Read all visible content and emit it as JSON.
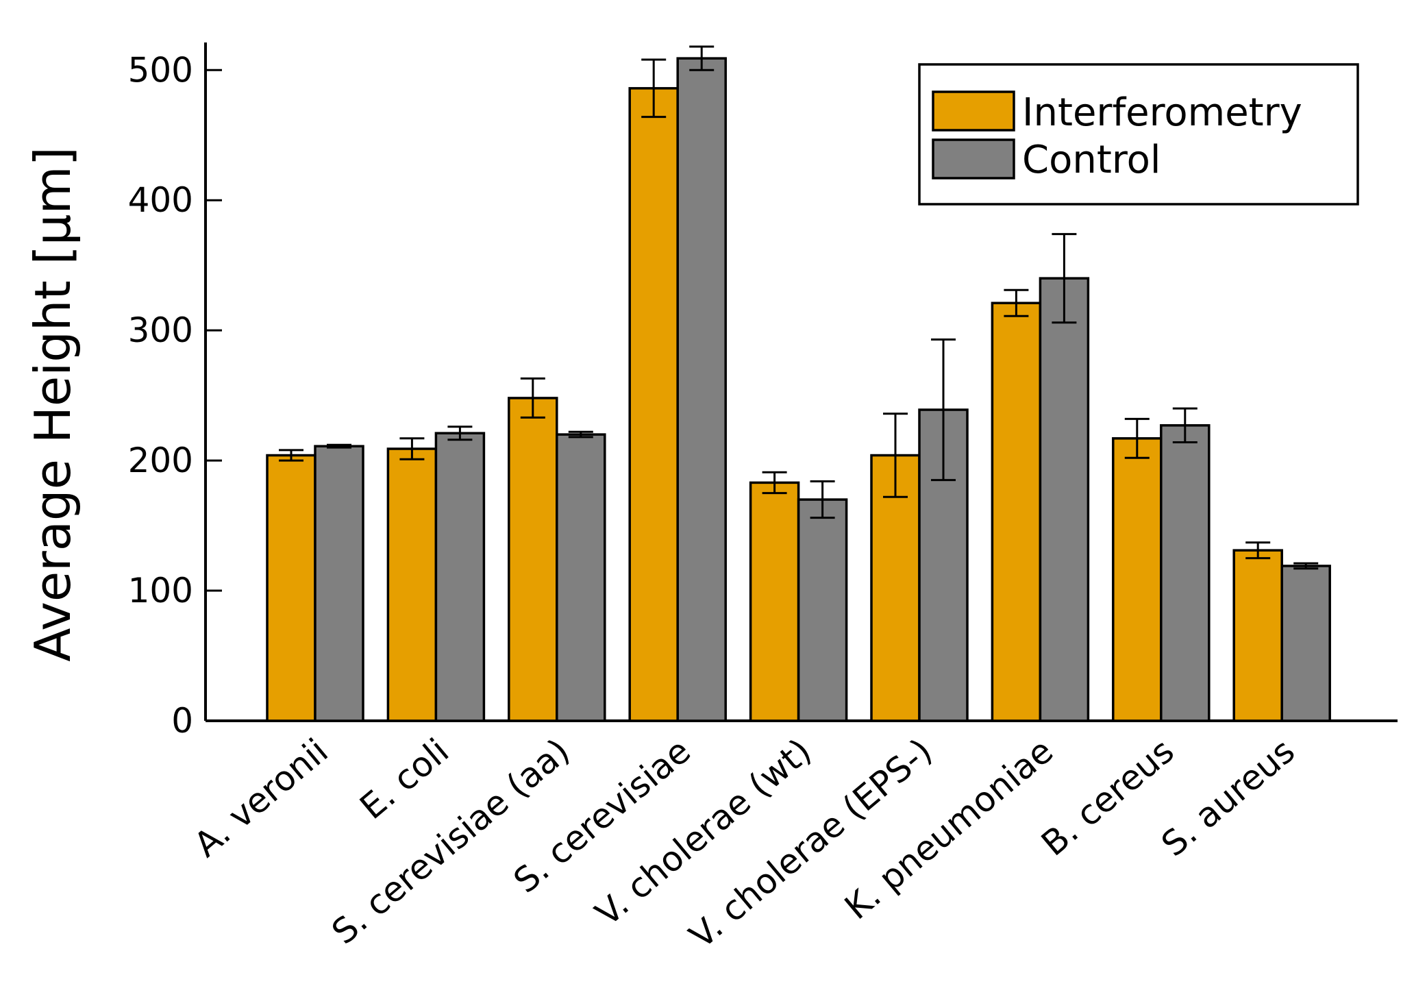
{
  "chart_data": {
    "type": "bar",
    "title": "",
    "xlabel": "",
    "ylabel": "Average Height [µm]",
    "ylim": [
      0,
      520
    ],
    "yticks": [
      0,
      100,
      200,
      300,
      400,
      500
    ],
    "grid": false,
    "legend_position": "top-right",
    "categories": [
      "A. veronii",
      "E. coli",
      "S. cerevisiae (aa)",
      "S. cerevisiae",
      "V. cholerae (wt)",
      "V. cholerae (EPS-)",
      "K. pneumoniae",
      "B. cereus",
      "S. aureus"
    ],
    "series": [
      {
        "name": "Interferometry",
        "color": "#e69f00",
        "values": [
          204,
          209,
          248,
          486,
          183,
          204,
          321,
          217,
          131
        ],
        "errors": [
          4,
          8,
          15,
          22,
          8,
          32,
          10,
          15,
          6
        ]
      },
      {
        "name": "Control",
        "color": "#808080",
        "values": [
          211,
          221,
          220,
          509,
          170,
          239,
          340,
          227,
          119
        ],
        "errors": [
          1,
          5,
          2,
          9,
          14,
          54,
          34,
          13,
          2
        ]
      }
    ]
  }
}
